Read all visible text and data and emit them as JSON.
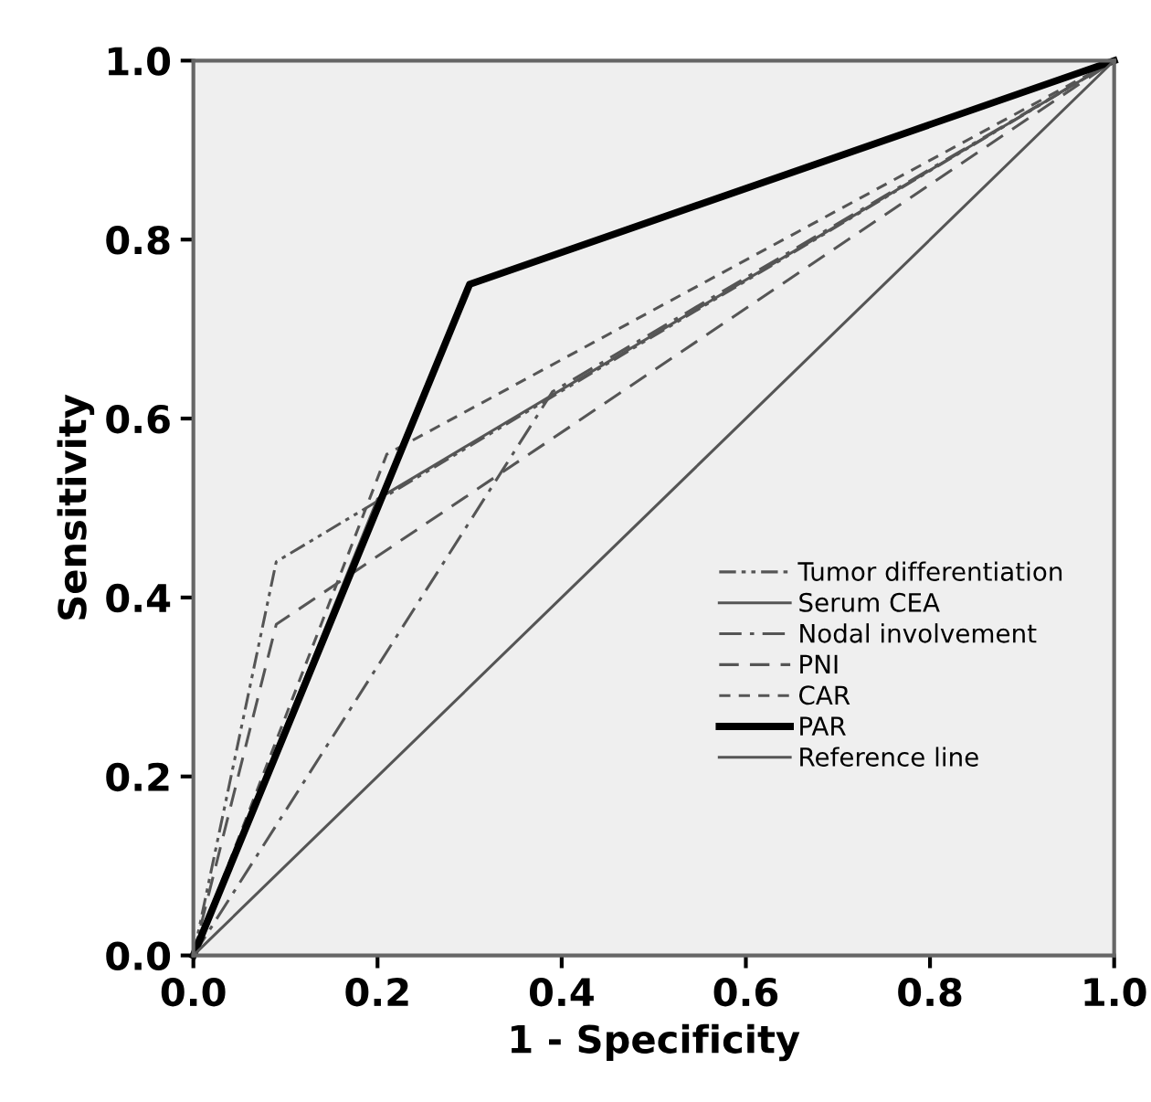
{
  "chart_data": {
    "type": "line",
    "xlabel": "1 - Specificity",
    "ylabel": "Sensitivity",
    "xlim": [
      0.0,
      1.0
    ],
    "ylim": [
      0.0,
      1.0
    ],
    "xticks": [
      {
        "value": 0,
        "label": "0.0"
      },
      {
        "value": 0.2,
        "label": "0.2"
      },
      {
        "value": 0.4,
        "label": "0.4"
      },
      {
        "value": 0.6,
        "label": "0.6"
      },
      {
        "value": 0.8,
        "label": "0.8"
      },
      {
        "value": 1,
        "label": "1.0"
      }
    ],
    "yticks": [
      {
        "value": 0,
        "label": "0.0"
      },
      {
        "value": 0.2,
        "label": "0.2"
      },
      {
        "value": 0.4,
        "label": "0.4"
      },
      {
        "value": 0.6,
        "label": "0.6"
      },
      {
        "value": 0.8,
        "label": "0.8"
      },
      {
        "value": 1,
        "label": "1.0"
      }
    ],
    "grid": false,
    "legend": "bottom right",
    "marker": "none",
    "series": [
      {
        "name": "Tumor differentiation",
        "color": "#555555",
        "line_style": "dashdotdot",
        "x": [
          0,
          0.09,
          1
        ],
        "values": [
          0,
          0.44,
          1
        ]
      },
      {
        "name": "Serum CEA",
        "color": "#555555",
        "line_style": "solid",
        "x": [
          0,
          0.2,
          1
        ],
        "values": [
          0,
          0.51,
          1
        ]
      },
      {
        "name": "Nodal involvement",
        "color": "#555555",
        "line_style": "dashdot",
        "x": [
          0,
          0.39,
          1
        ],
        "values": [
          0,
          0.63,
          1
        ]
      },
      {
        "name": "PNI",
        "color": "#555555",
        "line_style": "longdash",
        "x": [
          0,
          0.09,
          1
        ],
        "values": [
          0,
          0.37,
          1
        ]
      },
      {
        "name": "CAR",
        "color": "#555555",
        "line_style": "dashed",
        "x": [
          0,
          0.21,
          1
        ],
        "values": [
          0,
          0.56,
          1
        ]
      },
      {
        "name": "PAR",
        "color": "#000000",
        "line_style": "solid",
        "x": [
          0,
          0.3,
          1
        ],
        "values": [
          0,
          0.75,
          1
        ]
      },
      {
        "name": "Reference line",
        "color": "#555555",
        "line_style": "solid",
        "x": [
          0,
          1
        ],
        "values": [
          0,
          1
        ]
      }
    ]
  }
}
